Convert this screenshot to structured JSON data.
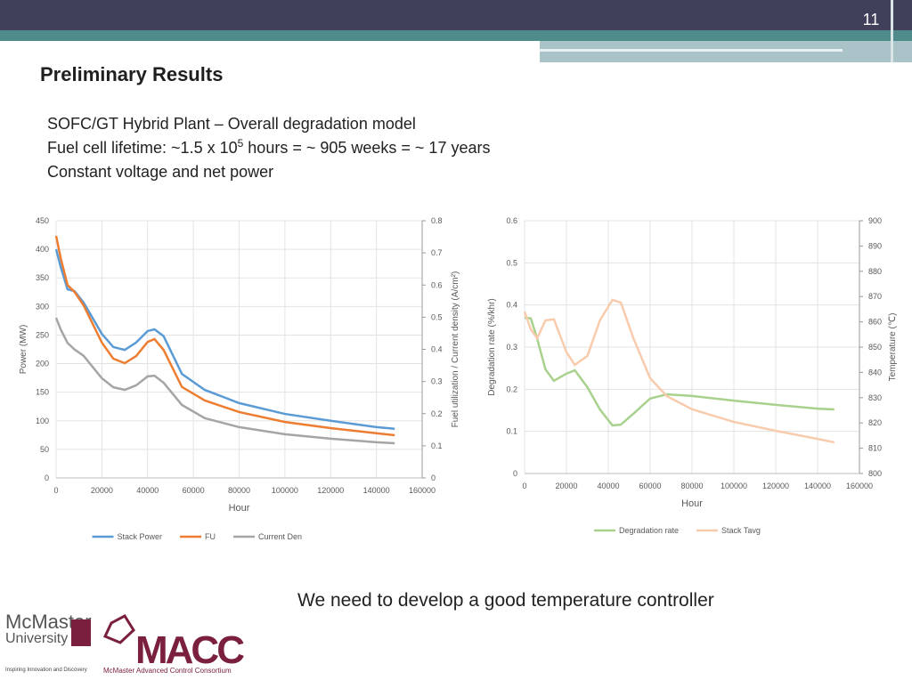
{
  "page_number": "11",
  "title": "Preliminary Results",
  "bullets": [
    "SOFC/GT Hybrid Plant – Overall degradation model",
    {
      "text": "Fuel cell lifetime: ~1.5 x 10",
      "superscript": "5",
      "rest": " hours = ~ 905 weeks = ~ 17 years"
    },
    "Constant voltage and net power"
  ],
  "conclusion": "We need to develop a good temperature controller",
  "logos": {
    "mcmaster": "McMaster",
    "university": "University",
    "motto": "Inspiring Innovation and Discovery",
    "macc": "MACC",
    "macc_full": "McMaster Advanced Control Consortium"
  },
  "chart_data": [
    {
      "type": "line",
      "xlabel": "Hour",
      "ylabel": "Power (MW)",
      "y2label": "Fuel utilization / Current density (A/cm²)",
      "x": [
        0,
        2000,
        5000,
        8000,
        12000,
        20000,
        25000,
        30000,
        35000,
        40000,
        43000,
        47000,
        55000,
        65000,
        80000,
        100000,
        120000,
        140000,
        148000
      ],
      "xlim": [
        0,
        160000
      ],
      "xticks": [
        0,
        20000,
        40000,
        60000,
        80000,
        100000,
        120000,
        140000,
        160000
      ],
      "ylim": [
        0,
        450
      ],
      "yticks": [
        0,
        50,
        100,
        150,
        200,
        250,
        300,
        350,
        400,
        450
      ],
      "y2lim": [
        0,
        0.8
      ],
      "y2ticks": [
        0,
        0.1,
        0.2,
        0.3,
        0.4,
        0.5,
        0.6,
        0.7,
        0.8
      ],
      "grid": true,
      "legend": "bottom",
      "series": [
        {
          "name": "Stack Power",
          "color": "#5b9bd5",
          "values": [
            400,
            369,
            330,
            327,
            307,
            252,
            229,
            224,
            237,
            257,
            260,
            248,
            182,
            154,
            131,
            112,
            100,
            89,
            86
          ]
        },
        {
          "name": "FU",
          "color": "#ed7d31",
          "axis": "y2",
          "values": [
            0.753,
            0.684,
            0.6,
            0.579,
            0.537,
            0.421,
            0.371,
            0.357,
            0.379,
            0.423,
            0.432,
            0.398,
            0.283,
            0.241,
            0.205,
            0.174,
            0.155,
            0.139,
            0.133
          ]
        },
        {
          "name": "Current Den",
          "color": "#a5a5a5",
          "axis": "y2",
          "values": [
            0.498,
            0.462,
            0.42,
            0.4,
            0.38,
            0.31,
            0.282,
            0.274,
            0.288,
            0.316,
            0.318,
            0.296,
            0.227,
            0.186,
            0.158,
            0.136,
            0.122,
            0.111,
            0.108
          ]
        }
      ]
    },
    {
      "type": "line",
      "xlabel": "Hour",
      "ylabel": "Degradation rate (%/khr)",
      "y2label": "Temperature (℃)",
      "x": [
        0,
        3000,
        6000,
        10000,
        14000,
        20000,
        24000,
        30000,
        36000,
        42000,
        46000,
        52000,
        60000,
        68000,
        80000,
        100000,
        120000,
        140000,
        148000
      ],
      "xlim": [
        0,
        160000
      ],
      "xticks": [
        0,
        20000,
        40000,
        60000,
        80000,
        100000,
        120000,
        140000,
        160000
      ],
      "ylim": [
        0,
        0.6
      ],
      "yticks": [
        0,
        0.1,
        0.2,
        0.3,
        0.4,
        0.5,
        0.6
      ],
      "y2lim": [
        800,
        900
      ],
      "y2ticks": [
        800,
        810,
        820,
        830,
        840,
        850,
        860,
        870,
        880,
        890,
        900
      ],
      "grid": true,
      "legend": "bottom",
      "series": [
        {
          "name": "Degradation rate",
          "color": "#a9d18e",
          "values": [
            0.37,
            0.368,
            0.32,
            0.247,
            0.22,
            0.237,
            0.245,
            0.205,
            0.152,
            0.114,
            0.116,
            0.142,
            0.178,
            0.188,
            0.184,
            0.173,
            0.163,
            0.154,
            0.152
          ]
        },
        {
          "name": "Stack Tavg",
          "color": "#f8cbad",
          "axis": "y2",
          "values": [
            864,
            857,
            853.5,
            860.6,
            861,
            848,
            843,
            846.5,
            860.6,
            868.7,
            867.6,
            853.5,
            837.7,
            830.6,
            825.4,
            820.4,
            816.9,
            813.7,
            812.3
          ]
        }
      ]
    }
  ]
}
